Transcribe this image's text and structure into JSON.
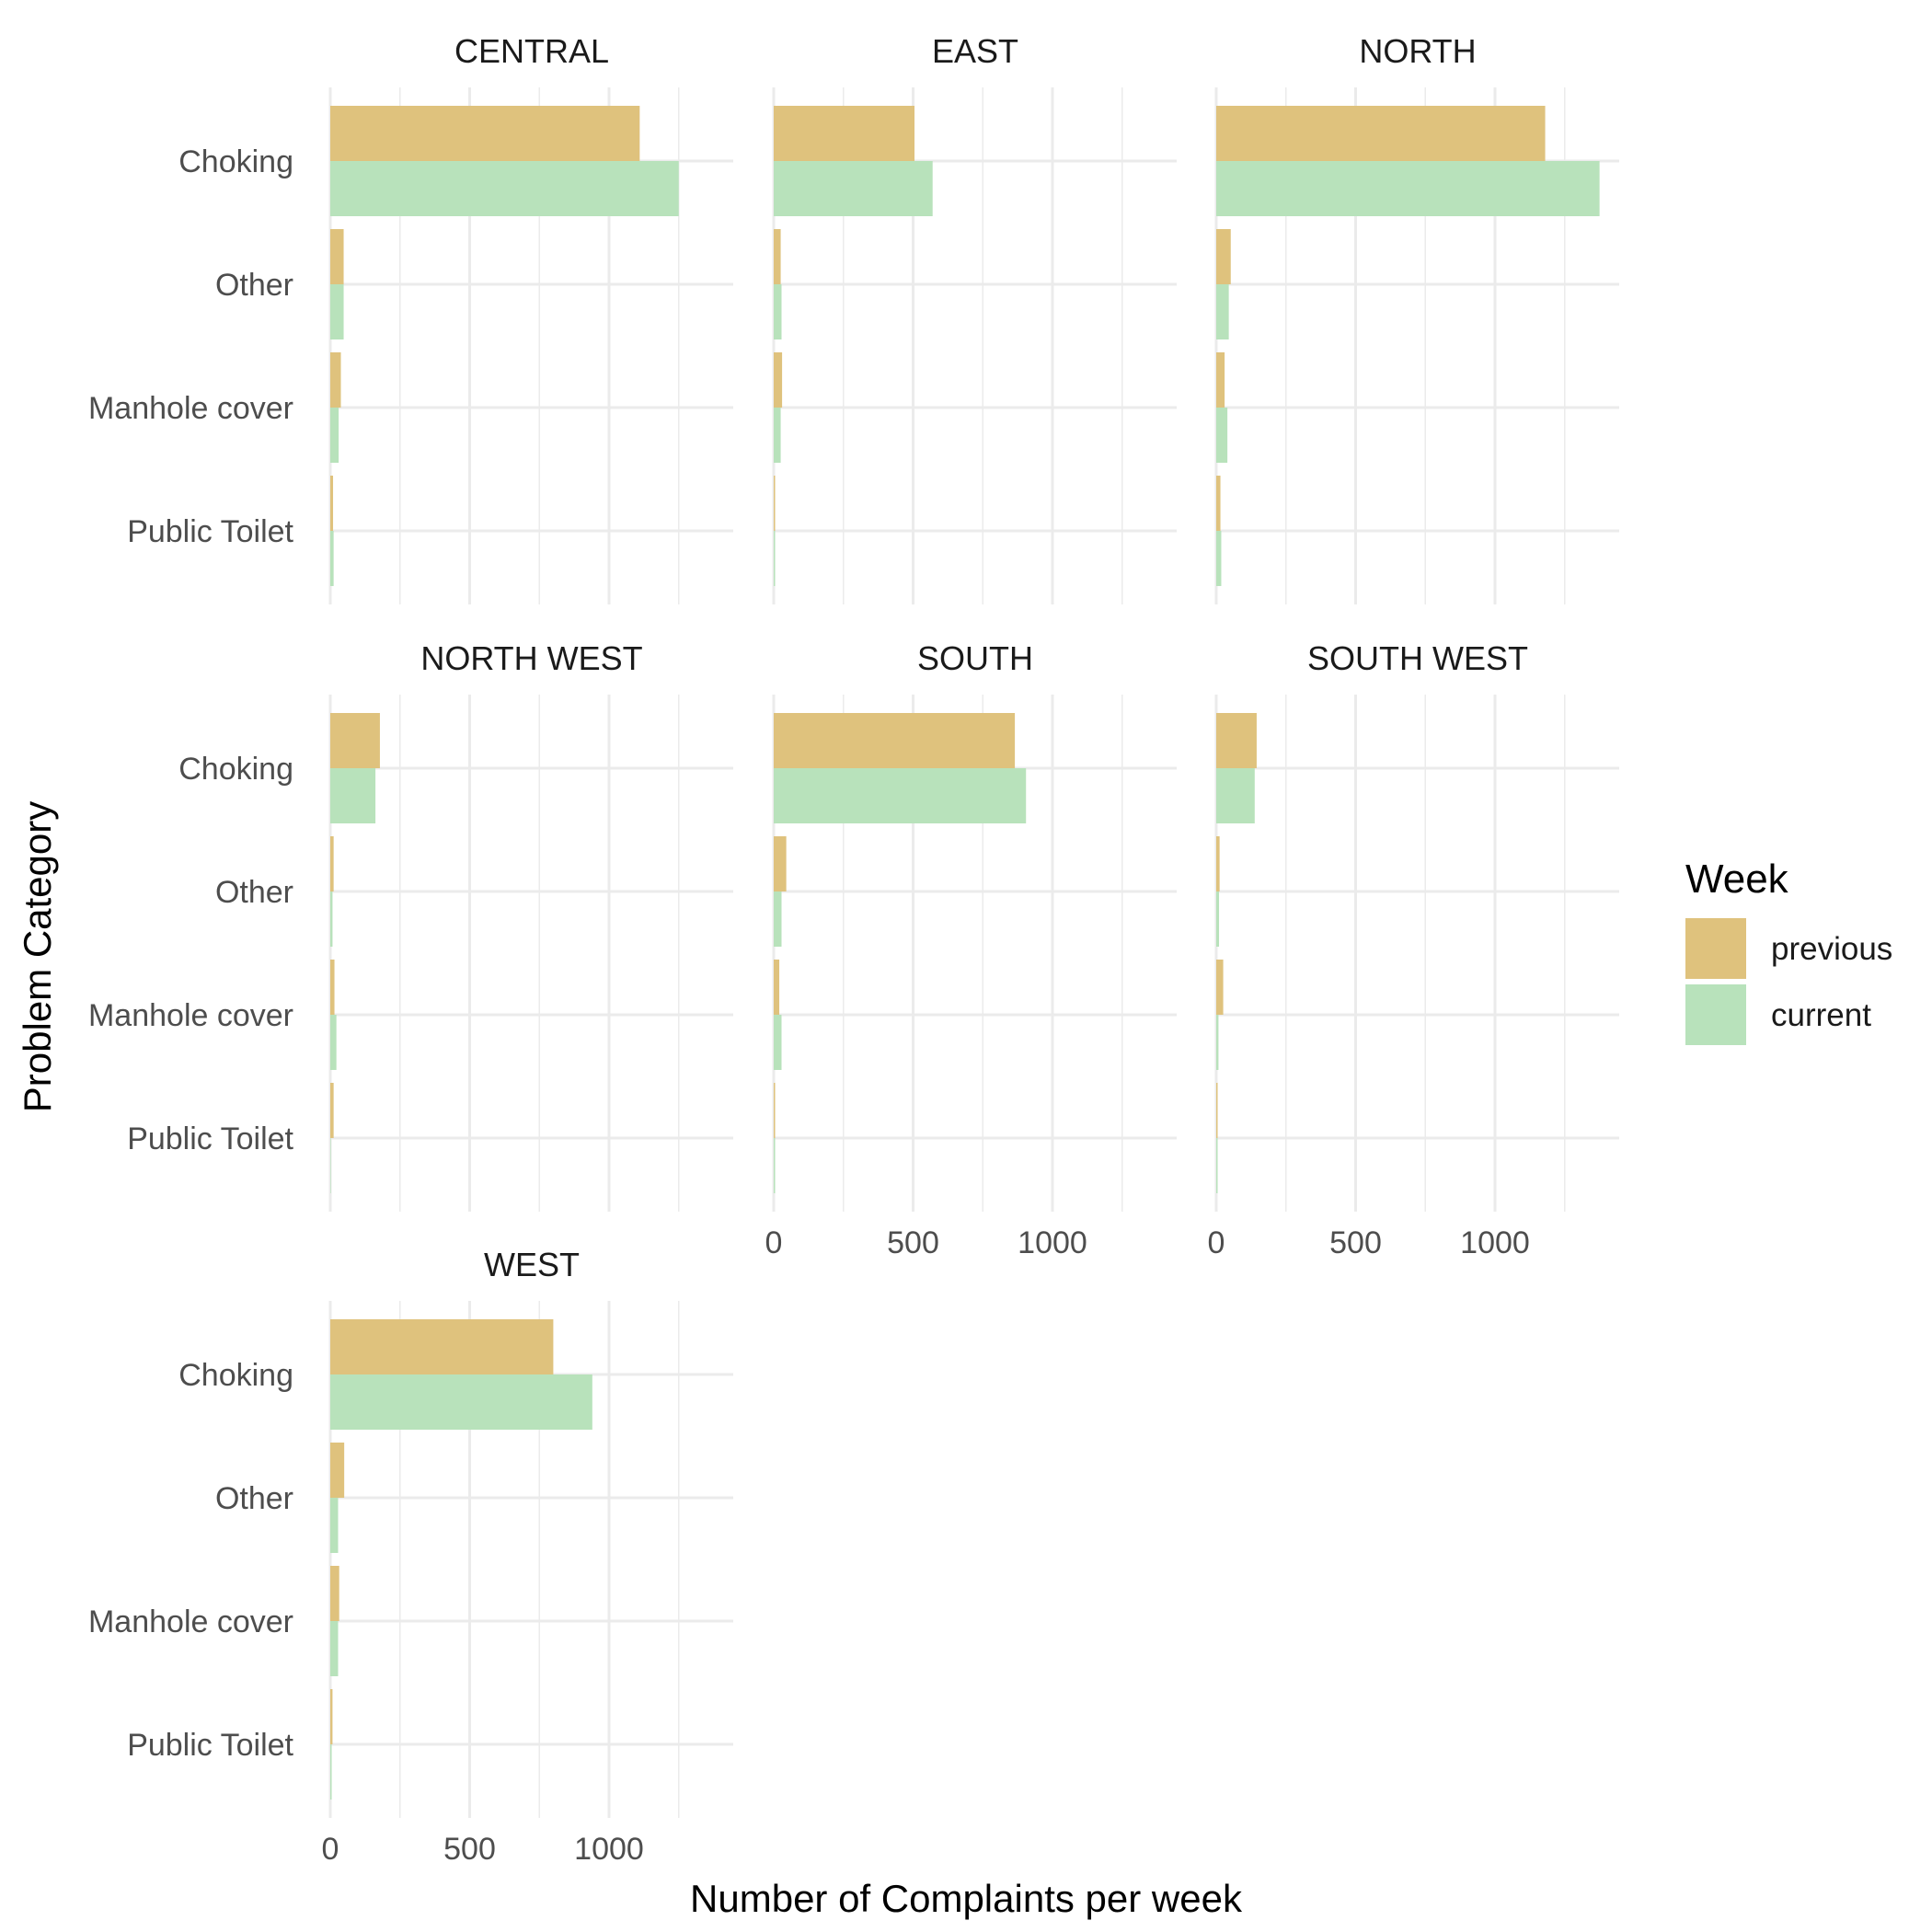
{
  "chart_data": {
    "type": "bar",
    "orientation": "horizontal",
    "faceted": true,
    "xlabel": "Number of Complaints per week",
    "ylabel": "Problem Category",
    "xlim": [
      0,
      1450
    ],
    "x_ticks": [
      0,
      500,
      1000
    ],
    "categories": [
      "Choking",
      "Other",
      "Manhole cover",
      "Public Toilet"
    ],
    "legend": {
      "title": "Week",
      "position": "right",
      "items": [
        {
          "name": "previous",
          "color": "#dfc27d"
        },
        {
          "name": "current",
          "color": "#b8e2bb"
        }
      ]
    },
    "grid": true,
    "facets": [
      {
        "title": "CENTRAL",
        "series": {
          "previous": [
            1110,
            48,
            38,
            10
          ],
          "current": [
            1250,
            48,
            30,
            12
          ]
        }
      },
      {
        "title": "EAST",
        "series": {
          "previous": [
            505,
            25,
            30,
            5
          ],
          "current": [
            570,
            28,
            25,
            5
          ]
        }
      },
      {
        "title": "NORTH",
        "series": {
          "previous": [
            1180,
            52,
            30,
            15
          ],
          "current": [
            1375,
            45,
            40,
            18
          ]
        }
      },
      {
        "title": "NORTH WEST",
        "series": {
          "previous": [
            178,
            12,
            15,
            12
          ],
          "current": [
            162,
            8,
            22,
            2
          ]
        }
      },
      {
        "title": "SOUTH",
        "series": {
          "previous": [
            865,
            45,
            20,
            5
          ],
          "current": [
            905,
            28,
            28,
            5
          ]
        }
      },
      {
        "title": "SOUTH WEST",
        "series": {
          "previous": [
            145,
            12,
            25,
            5
          ],
          "current": [
            138,
            10,
            8,
            5
          ]
        }
      },
      {
        "title": "WEST",
        "series": {
          "previous": [
            800,
            50,
            32,
            8
          ],
          "current": [
            940,
            28,
            28,
            5
          ]
        }
      }
    ]
  }
}
